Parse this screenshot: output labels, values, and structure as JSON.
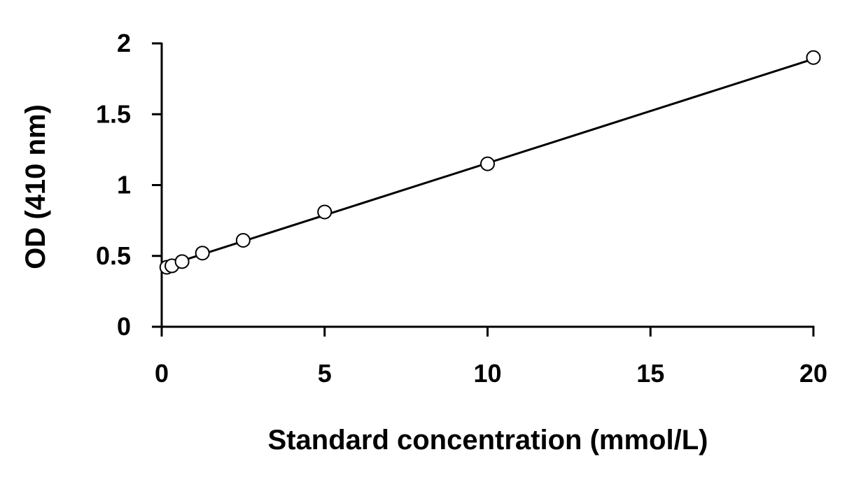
{
  "chart_data": {
    "type": "scatter",
    "title": "",
    "xlabel": "Standard concentration (mmol/L)",
    "ylabel": "OD (410 nm)",
    "xlim": [
      0,
      20
    ],
    "ylim": [
      0,
      2
    ],
    "xticks": [
      0,
      5,
      10,
      15,
      20
    ],
    "yticks": [
      0,
      0.5,
      1,
      1.5,
      2
    ],
    "xtick_labels": [
      "0",
      "5",
      "10",
      "15",
      "20"
    ],
    "ytick_labels": [
      "0",
      "0.5",
      "1",
      "1.5",
      "2"
    ],
    "grid": false,
    "legend": "none",
    "series": [
      {
        "marker": "open-circle",
        "x": [
          0.156,
          0.313,
          0.625,
          1.25,
          2.5,
          5,
          10,
          20
        ],
        "y": [
          0.42,
          0.43,
          0.46,
          0.52,
          0.61,
          0.81,
          1.15,
          1.9
        ]
      }
    ],
    "trendline": {
      "type": "linear",
      "x": [
        0,
        20
      ],
      "y": [
        0.42,
        1.89
      ]
    },
    "colors": {
      "axis": "#000000",
      "marker_stroke": "#000000",
      "marker_fill": "#ffffff",
      "line": "#000000"
    }
  }
}
